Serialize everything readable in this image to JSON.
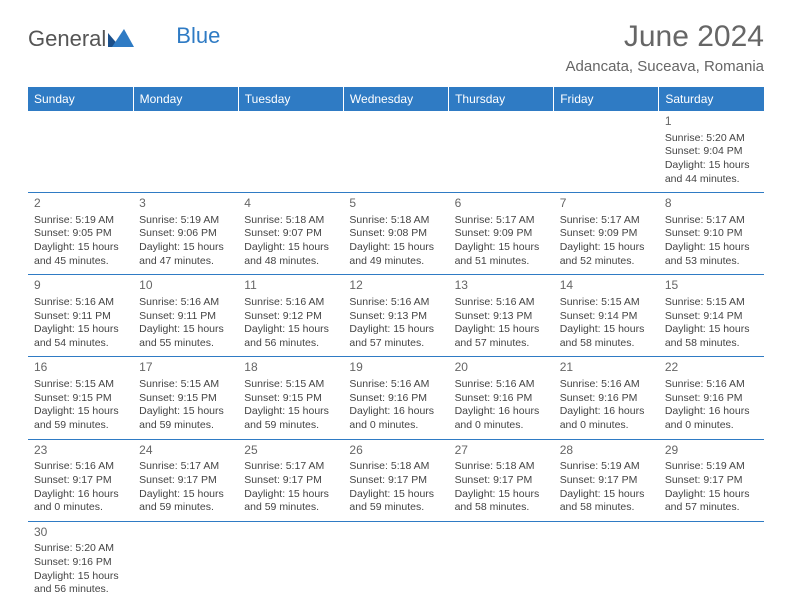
{
  "logo": {
    "text_general": "General",
    "text_blue": "Blue"
  },
  "header": {
    "month_title": "June 2024",
    "location": "Adancata, Suceava, Romania"
  },
  "colors": {
    "header_bg": "#2f7bc4",
    "header_text": "#ffffff",
    "border": "#2f7bc4",
    "body_text": "#444444",
    "title_text": "#666666"
  },
  "weekdays": [
    "Sunday",
    "Monday",
    "Tuesday",
    "Wednesday",
    "Thursday",
    "Friday",
    "Saturday"
  ],
  "weeks": [
    [
      null,
      null,
      null,
      null,
      null,
      null,
      {
        "n": "1",
        "sr": "Sunrise: 5:20 AM",
        "ss": "Sunset: 9:04 PM",
        "dl": "Daylight: 15 hours and 44 minutes."
      }
    ],
    [
      {
        "n": "2",
        "sr": "Sunrise: 5:19 AM",
        "ss": "Sunset: 9:05 PM",
        "dl": "Daylight: 15 hours and 45 minutes."
      },
      {
        "n": "3",
        "sr": "Sunrise: 5:19 AM",
        "ss": "Sunset: 9:06 PM",
        "dl": "Daylight: 15 hours and 47 minutes."
      },
      {
        "n": "4",
        "sr": "Sunrise: 5:18 AM",
        "ss": "Sunset: 9:07 PM",
        "dl": "Daylight: 15 hours and 48 minutes."
      },
      {
        "n": "5",
        "sr": "Sunrise: 5:18 AM",
        "ss": "Sunset: 9:08 PM",
        "dl": "Daylight: 15 hours and 49 minutes."
      },
      {
        "n": "6",
        "sr": "Sunrise: 5:17 AM",
        "ss": "Sunset: 9:09 PM",
        "dl": "Daylight: 15 hours and 51 minutes."
      },
      {
        "n": "7",
        "sr": "Sunrise: 5:17 AM",
        "ss": "Sunset: 9:09 PM",
        "dl": "Daylight: 15 hours and 52 minutes."
      },
      {
        "n": "8",
        "sr": "Sunrise: 5:17 AM",
        "ss": "Sunset: 9:10 PM",
        "dl": "Daylight: 15 hours and 53 minutes."
      }
    ],
    [
      {
        "n": "9",
        "sr": "Sunrise: 5:16 AM",
        "ss": "Sunset: 9:11 PM",
        "dl": "Daylight: 15 hours and 54 minutes."
      },
      {
        "n": "10",
        "sr": "Sunrise: 5:16 AM",
        "ss": "Sunset: 9:11 PM",
        "dl": "Daylight: 15 hours and 55 minutes."
      },
      {
        "n": "11",
        "sr": "Sunrise: 5:16 AM",
        "ss": "Sunset: 9:12 PM",
        "dl": "Daylight: 15 hours and 56 minutes."
      },
      {
        "n": "12",
        "sr": "Sunrise: 5:16 AM",
        "ss": "Sunset: 9:13 PM",
        "dl": "Daylight: 15 hours and 57 minutes."
      },
      {
        "n": "13",
        "sr": "Sunrise: 5:16 AM",
        "ss": "Sunset: 9:13 PM",
        "dl": "Daylight: 15 hours and 57 minutes."
      },
      {
        "n": "14",
        "sr": "Sunrise: 5:15 AM",
        "ss": "Sunset: 9:14 PM",
        "dl": "Daylight: 15 hours and 58 minutes."
      },
      {
        "n": "15",
        "sr": "Sunrise: 5:15 AM",
        "ss": "Sunset: 9:14 PM",
        "dl": "Daylight: 15 hours and 58 minutes."
      }
    ],
    [
      {
        "n": "16",
        "sr": "Sunrise: 5:15 AM",
        "ss": "Sunset: 9:15 PM",
        "dl": "Daylight: 15 hours and 59 minutes."
      },
      {
        "n": "17",
        "sr": "Sunrise: 5:15 AM",
        "ss": "Sunset: 9:15 PM",
        "dl": "Daylight: 15 hours and 59 minutes."
      },
      {
        "n": "18",
        "sr": "Sunrise: 5:15 AM",
        "ss": "Sunset: 9:15 PM",
        "dl": "Daylight: 15 hours and 59 minutes."
      },
      {
        "n": "19",
        "sr": "Sunrise: 5:16 AM",
        "ss": "Sunset: 9:16 PM",
        "dl": "Daylight: 16 hours and 0 minutes."
      },
      {
        "n": "20",
        "sr": "Sunrise: 5:16 AM",
        "ss": "Sunset: 9:16 PM",
        "dl": "Daylight: 16 hours and 0 minutes."
      },
      {
        "n": "21",
        "sr": "Sunrise: 5:16 AM",
        "ss": "Sunset: 9:16 PM",
        "dl": "Daylight: 16 hours and 0 minutes."
      },
      {
        "n": "22",
        "sr": "Sunrise: 5:16 AM",
        "ss": "Sunset: 9:16 PM",
        "dl": "Daylight: 16 hours and 0 minutes."
      }
    ],
    [
      {
        "n": "23",
        "sr": "Sunrise: 5:16 AM",
        "ss": "Sunset: 9:17 PM",
        "dl": "Daylight: 16 hours and 0 minutes."
      },
      {
        "n": "24",
        "sr": "Sunrise: 5:17 AM",
        "ss": "Sunset: 9:17 PM",
        "dl": "Daylight: 15 hours and 59 minutes."
      },
      {
        "n": "25",
        "sr": "Sunrise: 5:17 AM",
        "ss": "Sunset: 9:17 PM",
        "dl": "Daylight: 15 hours and 59 minutes."
      },
      {
        "n": "26",
        "sr": "Sunrise: 5:18 AM",
        "ss": "Sunset: 9:17 PM",
        "dl": "Daylight: 15 hours and 59 minutes."
      },
      {
        "n": "27",
        "sr": "Sunrise: 5:18 AM",
        "ss": "Sunset: 9:17 PM",
        "dl": "Daylight: 15 hours and 58 minutes."
      },
      {
        "n": "28",
        "sr": "Sunrise: 5:19 AM",
        "ss": "Sunset: 9:17 PM",
        "dl": "Daylight: 15 hours and 58 minutes."
      },
      {
        "n": "29",
        "sr": "Sunrise: 5:19 AM",
        "ss": "Sunset: 9:17 PM",
        "dl": "Daylight: 15 hours and 57 minutes."
      }
    ],
    [
      {
        "n": "30",
        "sr": "Sunrise: 5:20 AM",
        "ss": "Sunset: 9:16 PM",
        "dl": "Daylight: 15 hours and 56 minutes."
      },
      null,
      null,
      null,
      null,
      null,
      null
    ]
  ]
}
